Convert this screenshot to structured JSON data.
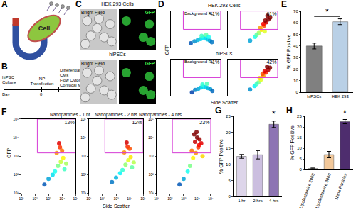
{
  "A": {
    "label": "A",
    "text": "Cell"
  },
  "B": {
    "label": "B",
    "start": "hiPSC Culture",
    "axis_label": "Day",
    "day": 0,
    "event": "NP Transfection",
    "end": [
      "Differentiation into hiPSC-CMs",
      "Flow Cytometry & Confocal Microscopy"
    ]
  },
  "C": {
    "label": "C",
    "rows": [
      {
        "title": "HEK 293 Cells",
        "images": [
          "Bright Field",
          "GFP"
        ]
      },
      {
        "title": "hiPSCs",
        "images": [
          "Bright Field",
          "GFP"
        ]
      }
    ]
  },
  "chart_data": [
    {
      "label": "D",
      "type": "flow_cytometry",
      "x_label": "Side Scatter",
      "y_label": "GFP",
      "log": true,
      "tick_labels": false,
      "xlim": [
        10,
        100000
      ],
      "ylim": [
        10,
        100000
      ],
      "rows": [
        {
          "title": "HEK 293 Cells",
          "plots": [
            {
              "gate": {
                "x": [
                  100,
                  100000
                ],
                "y": [
                  1000,
                  100000
                ]
              },
              "gate_title": "Background FL",
              "gate_text": "<1%",
              "x": [
                400,
                800,
                1500,
                2500,
                4000,
                6000,
                9000,
                14000,
                20000,
                3000,
                7000,
                11000
              ],
              "y": [
                30,
                50,
                70,
                90,
                120,
                100,
                80,
                60,
                40,
                200,
                250,
                150
              ]
            },
            {
              "gate": {
                "x": [
                  100,
                  100000
                ],
                "y": [
                  1000,
                  100000
                ]
              },
              "gate_text": "61%",
              "x": [
                600,
                1500,
                3000,
                5000,
                8000,
                12000,
                18000,
                25000,
                4000,
                7000,
                10000,
                15000,
                2000,
                9000
              ],
              "y": [
                60,
                150,
                400,
                900,
                2500,
                6000,
                12000,
                20000,
                1500,
                4000,
                9000,
                30000,
                250,
                600
              ]
            }
          ]
        },
        {
          "title": "hiPSCs",
          "plots": [
            {
              "gate": {
                "x": [
                  100,
                  100000
                ],
                "y": [
                  1000,
                  100000
                ]
              },
              "gate_title": "Background FL",
              "gate_text": "<1%",
              "x": [
                500,
                900,
                1600,
                2600,
                4200,
                6500,
                9500,
                15000,
                22000,
                3500,
                8000
              ],
              "y": [
                25,
                45,
                60,
                80,
                100,
                90,
                70,
                55,
                35,
                180,
                220
              ]
            },
            {
              "gate": {
                "x": [
                  100,
                  100000
                ],
                "y": [
                  1000,
                  100000
                ]
              },
              "gate_text": "42%",
              "x": [
                600,
                1400,
                2800,
                4500,
                7000,
                11000,
                17000,
                24000,
                3500,
                6000,
                9000,
                14000,
                2000
              ],
              "y": [
                50,
                120,
                300,
                600,
                1500,
                3500,
                7000,
                12000,
                900,
                2500,
                5000,
                15000,
                200
              ]
            }
          ]
        }
      ]
    },
    {
      "label": "E",
      "type": "bar",
      "y_label": "% GFP Positive",
      "categories": [
        "hiPSCs",
        "HEK 293"
      ],
      "values": [
        40,
        61
      ],
      "errors": [
        2.5,
        2.5
      ],
      "colors": [
        "#808080",
        "#b9d0e6"
      ],
      "ylim": [
        0,
        70
      ],
      "yticks": [
        0,
        10,
        20,
        30,
        40,
        50,
        60,
        70
      ],
      "annotations": [
        {
          "text": "*",
          "categories": [
            "hiPSCs",
            "HEK 293"
          ]
        }
      ]
    },
    {
      "label": "F",
      "type": "flow_cytometry",
      "x_label": "Side Scatter",
      "y_label": "GFP",
      "log": true,
      "xlim": [
        10,
        100000
      ],
      "ylim": [
        10,
        100000
      ],
      "xticks": [
        {
          "value": 10,
          "label": "10¹"
        },
        {
          "value": 100,
          "label": "10²"
        },
        {
          "value": 1000,
          "label": "10³"
        },
        {
          "value": 10000,
          "label": "10⁴"
        },
        {
          "value": 100000,
          "label": "10⁵"
        }
      ],
      "yticks": [
        {
          "value": 10,
          "label": "10¹"
        },
        {
          "value": 100,
          "label": "10²"
        },
        {
          "value": 1000,
          "label": "10³"
        },
        {
          "value": 10000,
          "label": "10⁴"
        },
        {
          "value": 100000,
          "label": "10⁵"
        }
      ],
      "rows": [
        {
          "plots": [
            {
              "title": "Nanoparticles - 1 hr",
              "gate": {
                "x": [
                  150,
                  100000
                ],
                "y": [
                  1500,
                  100000
                ]
              },
              "gate_text": "12%",
              "x": [
                500,
                1000,
                2000,
                3000,
                5000,
                8000,
                12000,
                20000,
                4000,
                7000,
                10000,
                15000,
                6000
              ],
              "y": [
                30,
                60,
                100,
                150,
                300,
                500,
                800,
                400,
                1500,
                3000,
                2000,
                200,
                5000
              ]
            },
            {
              "title": "Nanoparticles - 2 hrs",
              "gate": {
                "x": [
                  150,
                  100000
                ],
                "y": [
                  1500,
                  100000
                ]
              },
              "gate_text": "12%",
              "x": [
                500,
                1000,
                2000,
                3000,
                5000,
                8000,
                12000,
                20000,
                4000,
                7000,
                10000,
                15000,
                6000
              ],
              "y": [
                40,
                70,
                120,
                180,
                350,
                600,
                900,
                450,
                1600,
                3200,
                2500,
                250,
                5500
              ]
            },
            {
              "title": "Nanoparticles - 4 hrs",
              "gate": {
                "x": [
                  150,
                  100000
                ],
                "y": [
                  1500,
                  100000
                ]
              },
              "gate_text": "23%",
              "x": [
                500,
                1000,
                2000,
                3000,
                5000,
                8000,
                12000,
                20000,
                4000,
                7000,
                10000,
                15000,
                6000,
                9000,
                14000,
                25000
              ],
              "y": [
                30,
                60,
                150,
                300,
                800,
                1500,
                3000,
                5000,
                2000,
                6000,
                10000,
                8000,
                15000,
                20000,
                4000,
                1000
              ]
            }
          ]
        }
      ]
    },
    {
      "label": "G",
      "type": "bar",
      "y_label": "% GFP Positive",
      "categories": [
        "1 hr",
        "2 hrs",
        "4 hrs"
      ],
      "values": [
        12.5,
        13,
        22.5
      ],
      "errors": [
        0.6,
        1.3,
        1
      ],
      "colors": [
        "#ddd5ea",
        "#cbbedf",
        "#8d74b3"
      ],
      "ylim": [
        0,
        25
      ],
      "yticks": [
        0,
        5,
        10,
        15,
        20,
        25
      ],
      "annotations": [
        {
          "text": "*",
          "categories": [
            "4 hrs"
          ]
        }
      ]
    },
    {
      "label": "H",
      "type": "bar",
      "y_label": "% GFP Positive",
      "categories": [
        "Lipofectamine 2000",
        "Lipofectamine 3000",
        "Nano Particles"
      ],
      "values": [
        0.5,
        7,
        22.5
      ],
      "errors": [
        0.2,
        1.5,
        1
      ],
      "colors": [
        "#f3eee6",
        "#f2c89a",
        "#4e2d6e"
      ],
      "ylim": [
        0,
        25
      ],
      "yticks": [
        0,
        5,
        10,
        15,
        20,
        25
      ],
      "annotations": [
        {
          "text": "*",
          "categories": [
            "Nano Particles"
          ]
        }
      ]
    }
  ]
}
